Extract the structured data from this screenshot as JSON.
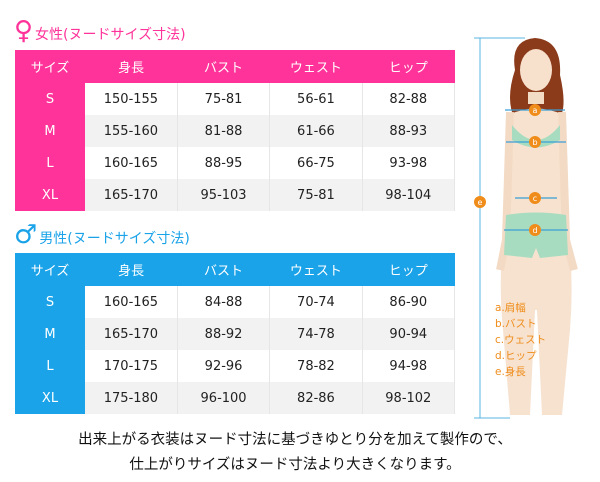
{
  "colors": {
    "women": "#ff3399",
    "men": "#1aa3e8",
    "marker": "#f08c1a"
  },
  "women": {
    "icon": "female-symbol",
    "symbol": "♀",
    "title": "女性(ヌードサイズ寸法)",
    "headers": [
      "サイズ",
      "身長",
      "バスト",
      "ウェスト",
      "ヒップ"
    ],
    "rows": [
      [
        "S",
        "150-155",
        "75-81",
        "56-61",
        "82-88"
      ],
      [
        "M",
        "155-160",
        "81-88",
        "61-66",
        "88-93"
      ],
      [
        "L",
        "160-165",
        "88-95",
        "66-75",
        "93-98"
      ],
      [
        "XL",
        "165-170",
        "95-103",
        "75-81",
        "98-104"
      ]
    ]
  },
  "men": {
    "icon": "male-symbol",
    "symbol": "♂",
    "title": "男性(ヌードサイズ寸法)",
    "headers": [
      "サイズ",
      "身長",
      "バスト",
      "ウェスト",
      "ヒップ"
    ],
    "rows": [
      [
        "S",
        "160-165",
        "84-88",
        "70-74",
        "86-90"
      ],
      [
        "M",
        "165-170",
        "88-92",
        "74-78",
        "90-94"
      ],
      [
        "L",
        "170-175",
        "92-96",
        "78-82",
        "94-98"
      ],
      [
        "XL",
        "175-180",
        "96-100",
        "82-86",
        "98-102"
      ]
    ]
  },
  "figure": {
    "markers": [
      "a",
      "b",
      "c",
      "d",
      "e"
    ],
    "legend": [
      "a.肩幅",
      "b.バスト",
      "c.ウェスト",
      "d.ヒップ",
      "e.身長"
    ]
  },
  "caption": [
    "出来上がる衣装はヌード寸法に基づきゆとり分を加えて製作ので、",
    "仕上がりサイズはヌード寸法より大きくなります。"
  ]
}
